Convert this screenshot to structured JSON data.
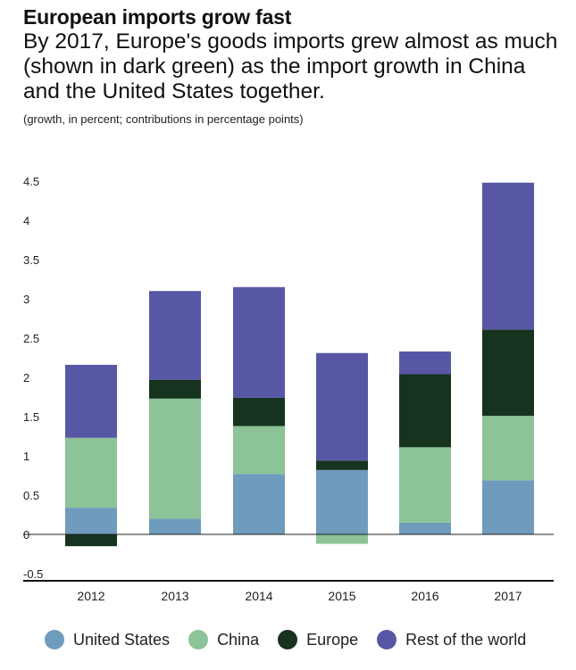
{
  "title": "European imports grow fast",
  "subtitle": "By 2017, Europe's goods imports grew almost as much (shown in dark green) as the import growth in China and the United States together.",
  "note": "(growth, in percent; contributions in percentage points)",
  "legend": [
    {
      "label": "United States",
      "color": "#6f9bbd"
    },
    {
      "label": "China",
      "color": "#8cc397"
    },
    {
      "label": "Europe",
      "color": "#15331e"
    },
    {
      "label": "Rest of the world",
      "color": "#5757a6"
    }
  ],
  "chart_data": {
    "type": "bar",
    "stacked": true,
    "categories": [
      "2012",
      "2013",
      "2014",
      "2015",
      "2016",
      "2017"
    ],
    "series": [
      {
        "name": "United States",
        "color": "#6f9bbd",
        "values": [
          0.34,
          0.2,
          0.77,
          0.82,
          0.15,
          0.69
        ]
      },
      {
        "name": "China",
        "color": "#8cc397",
        "values": [
          0.89,
          1.53,
          0.61,
          -0.12,
          0.96,
          0.82
        ]
      },
      {
        "name": "Europe",
        "color": "#15331e",
        "values": [
          -0.15,
          0.24,
          0.36,
          0.12,
          0.93,
          1.1
        ]
      },
      {
        "name": "Rest of the world",
        "color": "#5757a6",
        "values": [
          0.93,
          1.13,
          1.41,
          1.37,
          0.29,
          1.87
        ]
      }
    ],
    "ylim": [
      -0.5,
      4.5
    ],
    "yticks": [
      "4.5",
      "4",
      "3.5",
      "3",
      "2.5",
      "2",
      "1.5",
      "1",
      "0.5",
      "0",
      "-0.5"
    ],
    "grid": false,
    "legend_position": "bottom"
  }
}
